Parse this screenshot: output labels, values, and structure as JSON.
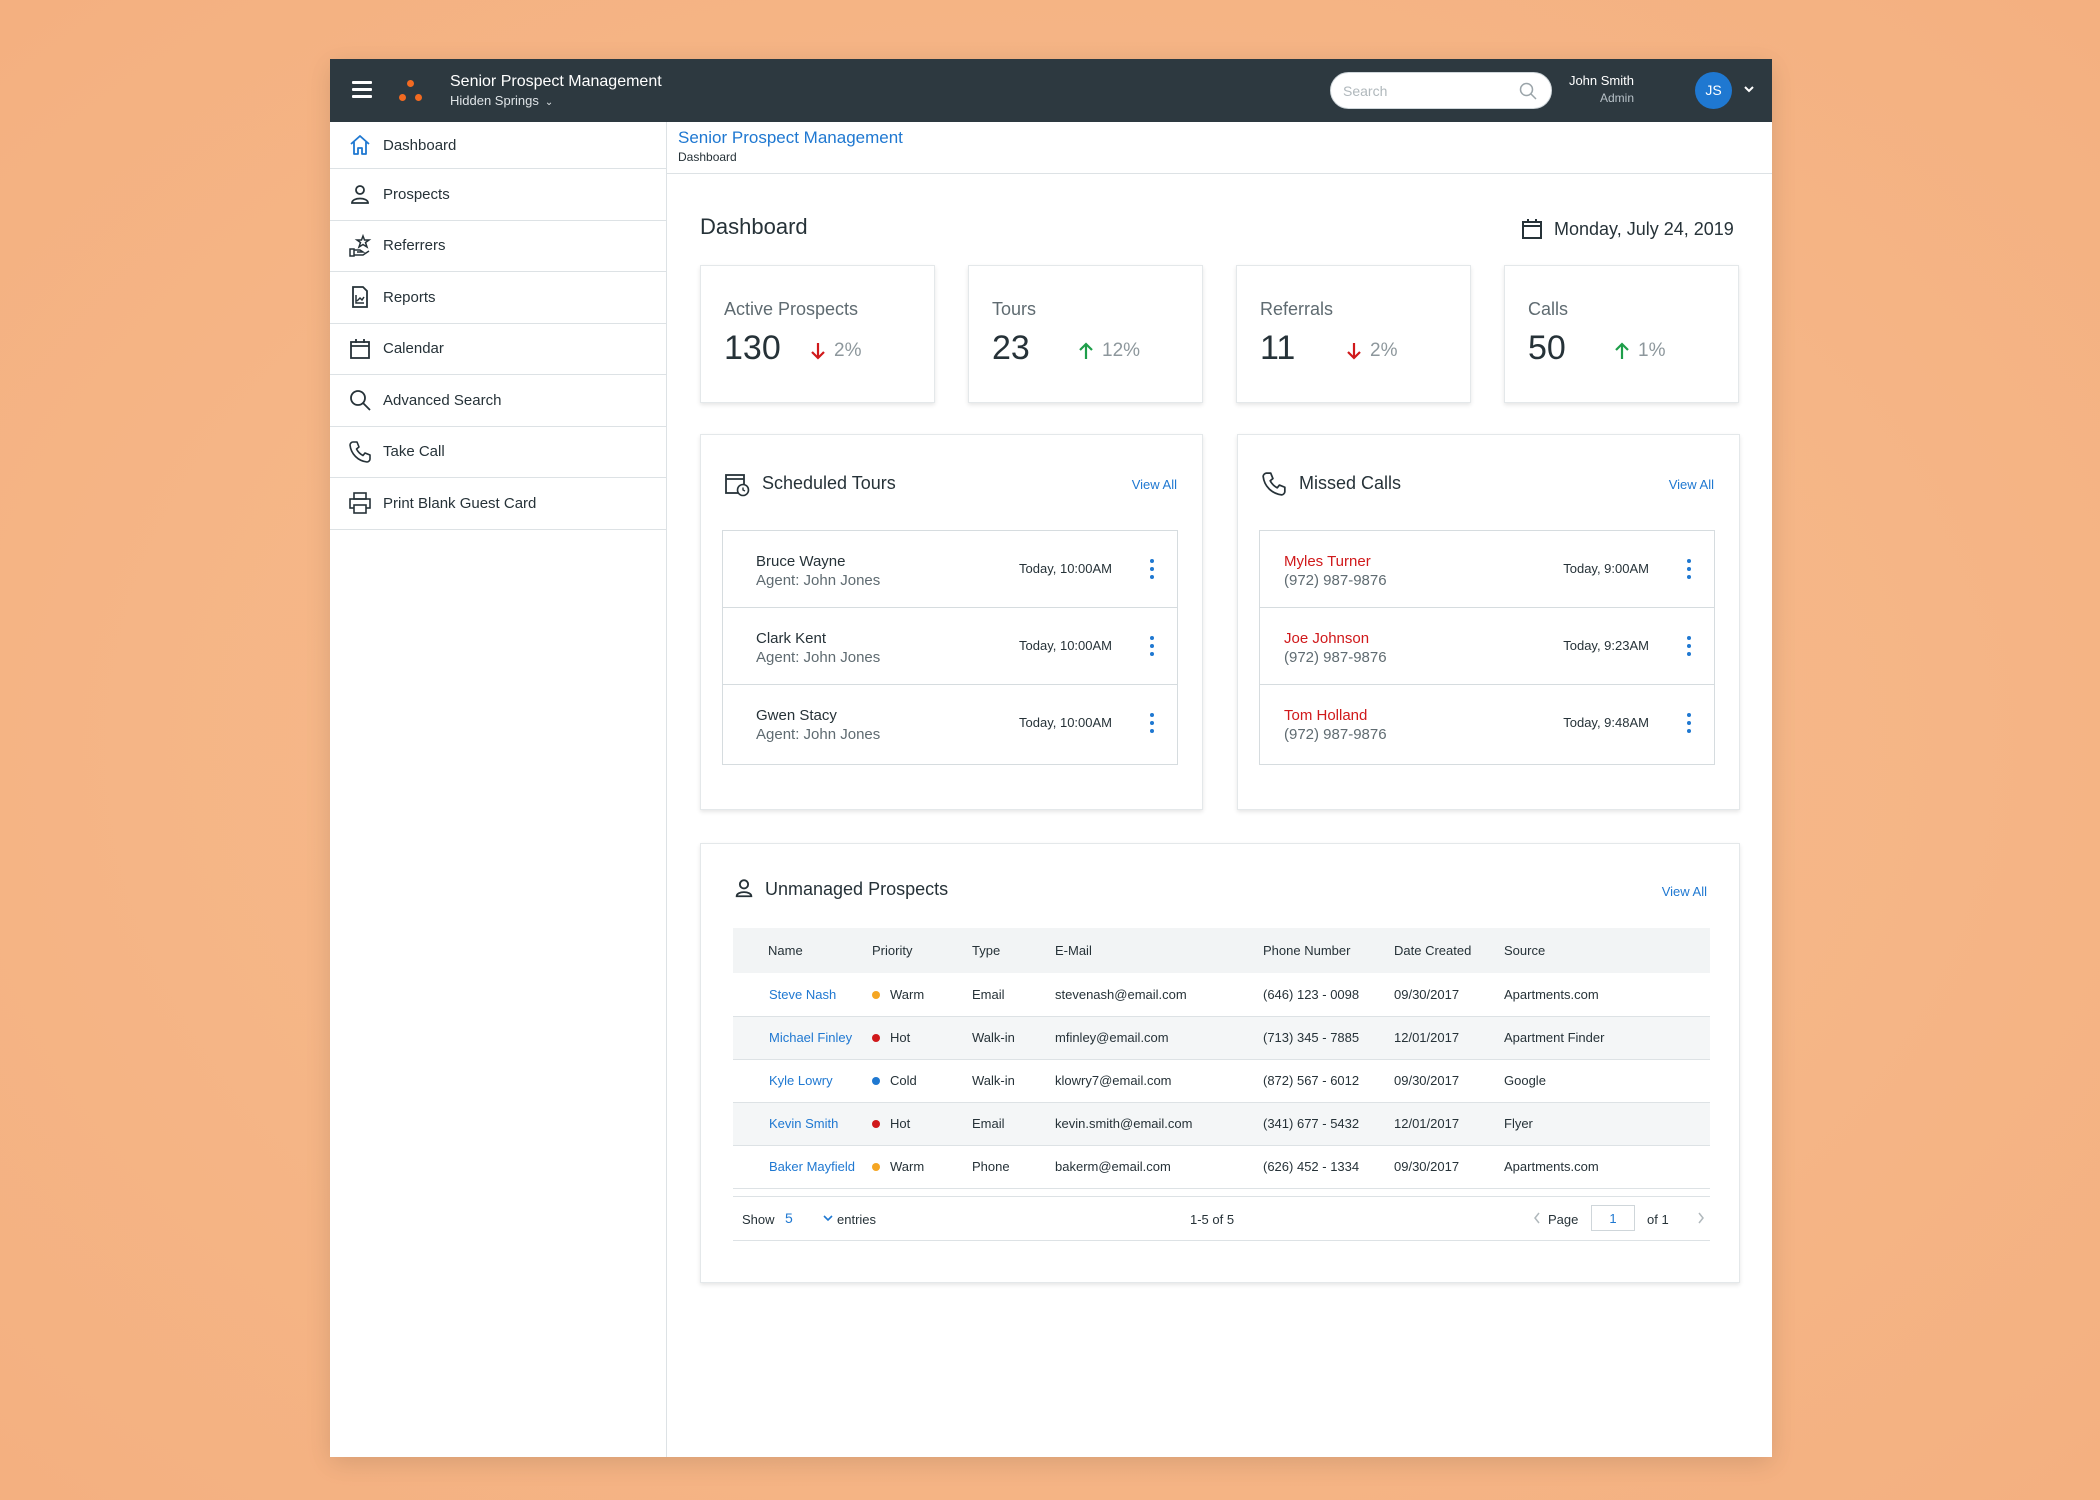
{
  "header": {
    "app_title": "Senior Prospect Management",
    "community": "Hidden Springs",
    "search_placeholder": "Search",
    "user_name": "John Smith",
    "user_role": "Admin",
    "avatar_initials": "JS"
  },
  "sidebar": {
    "items": [
      {
        "label": "Dashboard",
        "icon": "home-icon"
      },
      {
        "label": "Prospects",
        "icon": "person-icon"
      },
      {
        "label": "Referrers",
        "icon": "hand-star-icon"
      },
      {
        "label": "Reports",
        "icon": "report-icon"
      },
      {
        "label": "Calendar",
        "icon": "calendar-icon"
      },
      {
        "label": "Advanced Search",
        "icon": "search-icon"
      },
      {
        "label": "Take Call",
        "icon": "phone-icon"
      },
      {
        "label": "Print Blank Guest Card",
        "icon": "printer-icon"
      }
    ]
  },
  "breadcrumb": {
    "title": "Senior Prospect Management",
    "current": "Dashboard"
  },
  "main": {
    "title": "Dashboard",
    "date": "Monday, July 24, 2019"
  },
  "stats": [
    {
      "label": "Active Prospects",
      "value": "130",
      "trend": "2%",
      "direction": "down"
    },
    {
      "label": "Tours",
      "value": "23",
      "trend": "12%",
      "direction": "up"
    },
    {
      "label": "Referrals",
      "value": "11",
      "trend": "2%",
      "direction": "down"
    },
    {
      "label": "Calls",
      "value": "50",
      "trend": "1%",
      "direction": "up"
    }
  ],
  "tours": {
    "title": "Scheduled Tours",
    "view_all": "View All",
    "rows": [
      {
        "name": "Bruce Wayne",
        "agent": "Agent: John Jones",
        "time": "Today, 10:00AM"
      },
      {
        "name": "Clark Kent",
        "agent": "Agent: John Jones",
        "time": "Today, 10:00AM"
      },
      {
        "name": "Gwen Stacy",
        "agent": "Agent: John Jones",
        "time": "Today, 10:00AM"
      }
    ]
  },
  "missed_calls": {
    "title": "Missed Calls",
    "view_all": "View All",
    "rows": [
      {
        "name": "Myles Turner",
        "phone": "(972) 987-9876",
        "time": "Today, 9:00AM"
      },
      {
        "name": "Joe Johnson",
        "phone": "(972) 987-9876",
        "time": "Today, 9:23AM"
      },
      {
        "name": "Tom Holland",
        "phone": "(972) 987-9876",
        "time": "Today, 9:48AM"
      }
    ]
  },
  "unmanaged": {
    "title": "Unmanaged Prospects",
    "view_all": "View All",
    "columns": [
      "Name",
      "Priority",
      "Type",
      "E-Mail",
      "Phone Number",
      "Date Created",
      "Source"
    ],
    "rows": [
      {
        "name": "Steve Nash",
        "priority": "Warm",
        "type": "Email",
        "email": "stevenash@email.com",
        "phone": "(646) 123 - 0098",
        "date": "09/30/2017",
        "source": "Apartments.com"
      },
      {
        "name": "Michael Finley",
        "priority": "Hot",
        "type": "Walk-in",
        "email": "mfinley@email.com",
        "phone": "(713) 345 - 7885",
        "date": "12/01/2017",
        "source": "Apartment Finder"
      },
      {
        "name": "Kyle Lowry",
        "priority": "Cold",
        "type": "Walk-in",
        "email": "klowry7@email.com",
        "phone": "(872) 567 - 6012",
        "date": "09/30/2017",
        "source": "Google"
      },
      {
        "name": "Kevin Smith",
        "priority": "Hot",
        "type": "Email",
        "email": "kevin.smith@email.com",
        "phone": "(341) 677 - 5432",
        "date": "12/01/2017",
        "source": "Flyer"
      },
      {
        "name": "Baker Mayfield",
        "priority": "Warm",
        "type": "Phone",
        "email": "bakerm@email.com",
        "phone": "(626) 452 - 1334",
        "date": "09/30/2017",
        "source": "Apartments.com"
      }
    ],
    "footer": {
      "show_label": "Show",
      "show_value": "5",
      "entries_label": "entries",
      "range": "1-5 of 5",
      "page_label": "Page",
      "page_value": "1",
      "of_label": "of 1"
    }
  },
  "colors": {
    "topbar": "#2d3940",
    "accent": "#1f78d1",
    "brand": "#f26a21",
    "trend_up": "#1e9e4a",
    "trend_down": "#d0191b",
    "warm": "#f5a623",
    "hot": "#d0191b",
    "cold": "#1f78d1"
  }
}
